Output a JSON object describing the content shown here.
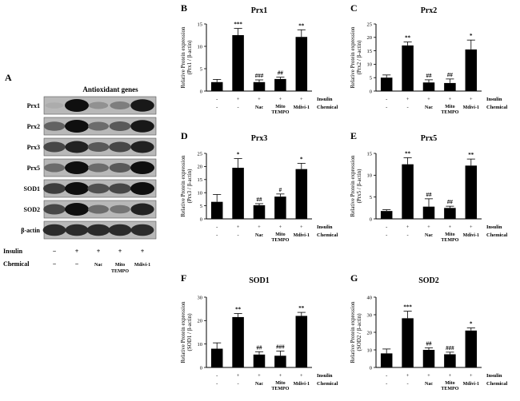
{
  "panel_a": {
    "letter": "A",
    "title": "Antioxidant  genes",
    "rows": [
      "Prx1",
      "Prx2",
      "Prx3",
      "Prx5",
      "SOD1",
      "SOD2",
      "β-actin"
    ],
    "insulin_label": "Insulin",
    "chemical_label": "Chemical",
    "insulin_marks": [
      "−",
      "+",
      "+",
      "+",
      "+"
    ],
    "chemical_marks": [
      "−",
      "−",
      "Nac",
      "Mito TEMPO",
      "Mdivi-1"
    ]
  },
  "chart_data": [
    {
      "type": "bar",
      "letter": "B",
      "title": "Prx1",
      "ylabel": "Relative Protein expression",
      "ylabel2": "(Prx1 / β-actin)",
      "ylim": [
        0,
        15
      ],
      "yticks": [
        0,
        5,
        10,
        15
      ],
      "values": [
        2.0,
        12.5,
        2.0,
        2.7,
        12.1
      ],
      "errors": [
        0.6,
        1.5,
        0.5,
        0.4,
        1.6
      ],
      "sig": [
        "",
        "***",
        "###",
        "##",
        "**"
      ],
      "insulin": [
        "-",
        "+",
        "+",
        "+",
        "+"
      ],
      "chemical": [
        "-",
        "-",
        "Nac",
        "Mito TEMPO",
        "Mdivi-1"
      ],
      "insulin_label": "Insulin",
      "chemical_label": "Chemical"
    },
    {
      "type": "bar",
      "letter": "C",
      "title": "Prx2",
      "ylabel": "Relative Protein expression",
      "ylabel2": "(Prx2 / β-actin)",
      "ylim": [
        0,
        25
      ],
      "yticks": [
        0,
        5,
        10,
        15,
        20,
        25
      ],
      "values": [
        5.0,
        17.0,
        3.2,
        3.0,
        15.5
      ],
      "errors": [
        1.0,
        1.3,
        1.0,
        1.5,
        3.5
      ],
      "sig": [
        "",
        "**",
        "##",
        "##",
        "*"
      ],
      "insulin": [
        "-",
        "+",
        "+",
        "+",
        "+"
      ],
      "chemical": [
        "-",
        "-",
        "Nac",
        "Mito TEMPO",
        "Mdivi-1"
      ],
      "insulin_label": "Insulin",
      "chemical_label": "Chemical"
    },
    {
      "type": "bar",
      "letter": "D",
      "title": "Prx3",
      "ylabel": "Relative Protein expression",
      "ylabel2": "(Prx3 / β-actin)",
      "ylim": [
        0,
        25
      ],
      "yticks": [
        0,
        5,
        10,
        15,
        20,
        25
      ],
      "values": [
        6.5,
        19.5,
        5.2,
        8.5,
        19.0
      ],
      "errors": [
        2.8,
        3.5,
        0.6,
        1.0,
        2.2
      ],
      "sig": [
        "",
        "*",
        "##",
        "#",
        "*"
      ],
      "insulin": [
        "-",
        "+",
        "+",
        "+",
        "+"
      ],
      "chemical": [
        "-",
        "-",
        "Nac",
        "Mito TEMPO",
        "Mdivi-1"
      ],
      "insulin_label": "Insulin",
      "chemical_label": "Chemical"
    },
    {
      "type": "bar",
      "letter": "E",
      "title": "Prx5",
      "ylabel": "Relative Protein expression",
      "ylabel2": "(Prx5 / β-actin)",
      "ylim": [
        0,
        15
      ],
      "yticks": [
        0,
        5,
        10,
        15
      ],
      "values": [
        1.8,
        12.5,
        2.8,
        2.5,
        12.2
      ],
      "errors": [
        0.3,
        1.5,
        1.8,
        0.4,
        1.5
      ],
      "sig": [
        "",
        "**",
        "##",
        "##",
        "**"
      ],
      "insulin": [
        "-",
        "+",
        "+",
        "+",
        "+"
      ],
      "chemical": [
        "-",
        "-",
        "Nac",
        "Mito TEMPO",
        "Mdivi-1"
      ],
      "insulin_label": "Insulin",
      "chemical_label": "Chemical"
    },
    {
      "type": "bar",
      "letter": "F",
      "title": "SOD1",
      "ylabel": "Relative Protein expression",
      "ylabel2": "(SOD1 / β-actin)",
      "ylim": [
        0,
        30
      ],
      "yticks": [
        0,
        10,
        20,
        30
      ],
      "values": [
        8.0,
        21.5,
        5.5,
        5.0,
        22.0
      ],
      "errors": [
        2.5,
        1.5,
        1.2,
        2.0,
        1.5
      ],
      "sig": [
        "",
        "**",
        "##",
        "###",
        "**"
      ],
      "insulin": [
        "-",
        "+",
        "+",
        "+",
        "+"
      ],
      "chemical": [
        "-",
        "-",
        "Nac",
        "Mito TEMPO",
        "Mdivi-1"
      ],
      "insulin_label": "Insulin",
      "chemical_label": "Chemical"
    },
    {
      "type": "bar",
      "letter": "G",
      "title": "SOD2",
      "ylabel": "Relative Protein expression",
      "ylabel2": "(SOD2 / β-actin)",
      "ylim": [
        0,
        40
      ],
      "yticks": [
        0,
        10,
        20,
        30,
        40
      ],
      "values": [
        8.0,
        28.0,
        10.0,
        7.5,
        21.0
      ],
      "errors": [
        2.5,
        4.0,
        1.2,
        1.2,
        1.5
      ],
      "sig": [
        "",
        "***",
        "##",
        "###",
        "*"
      ],
      "insulin": [
        "-",
        "+",
        "+",
        "+",
        "+"
      ],
      "chemical": [
        "-",
        "-",
        "Nac",
        "Mito TEMPO",
        "Mdivi-1"
      ],
      "insulin_label": "Insulin",
      "chemical_label": "Chemical"
    }
  ]
}
